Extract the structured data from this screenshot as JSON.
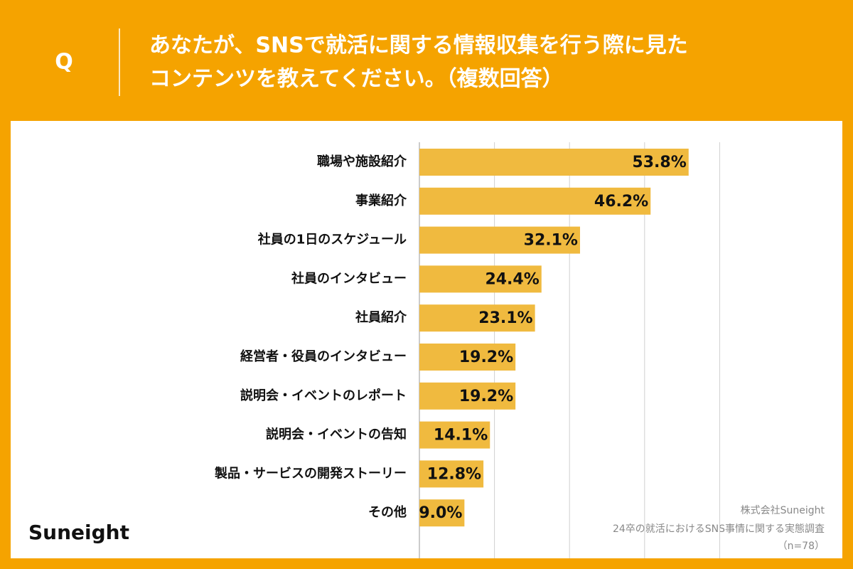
{
  "chart_data": {
    "type": "barh",
    "q_label": "Q",
    "title": [
      "あなたが、SNSで就活に関する情報収集を行う際に見た",
      "コンテンツを教えてください。（複数回答）"
    ],
    "categories": [
      "職場や施設紹介",
      "事業紹介",
      "社員の1日のスケジュール",
      "社員のインタビュー",
      "社員紹介",
      "経営者・役員のインタビュー",
      "説明会・イベントのレポート",
      "説明会・イベントの告知",
      "製品・サービスの開発ストーリー",
      "その他"
    ],
    "values": [
      53.8,
      46.2,
      32.1,
      24.4,
      23.1,
      19.2,
      19.2,
      14.1,
      12.8,
      9.0
    ],
    "value_labels": [
      "53.8%",
      "46.2%",
      "32.1%",
      "24.4%",
      "23.1%",
      "19.2%",
      "19.2%",
      "14.1%",
      "12.8%",
      "9.0%"
    ],
    "color": "#f0ba3f",
    "xlim": [
      0,
      60
    ],
    "xticks": [
      0,
      15,
      30,
      45,
      60
    ],
    "grid": true,
    "brand": "Suneight",
    "notes": [
      "株式会社Suneight",
      "24卒の就活におけるSNS事情に関する実態調査",
      "（n=78）"
    ]
  }
}
